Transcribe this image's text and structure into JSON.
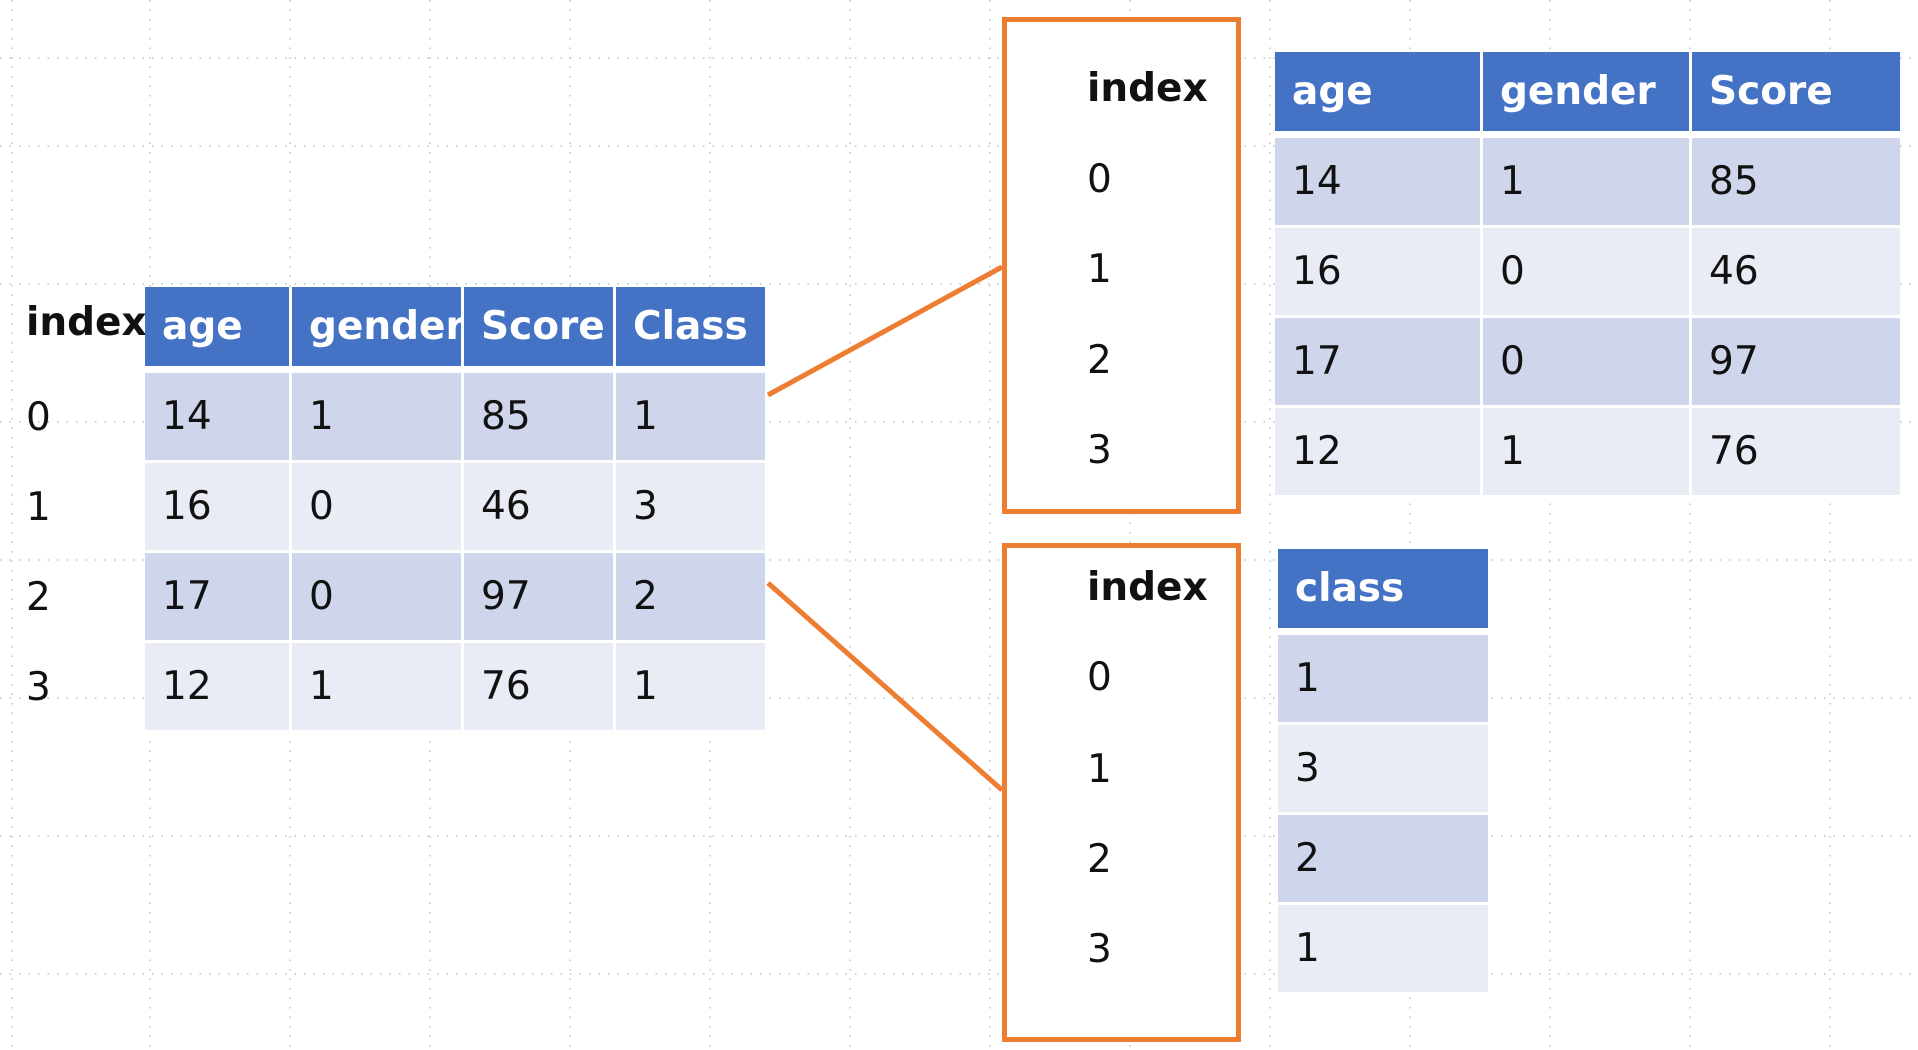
{
  "colors": {
    "header_fill": "#4472c4",
    "row_odd_fill": "#cfd5ea",
    "row_even_fill": "#e9ebf5",
    "box_stroke": "#ed7d31",
    "connector_stroke": "#ed7d31",
    "grid_dots": "#bfbfbf"
  },
  "source": {
    "index_header": "index",
    "index_values": [
      "0",
      "1",
      "2",
      "3"
    ],
    "columns": [
      "age",
      "gender",
      "Score",
      "Class"
    ],
    "rows": [
      [
        "14",
        "1",
        "85",
        "1"
      ],
      [
        "16",
        "0",
        "46",
        "3"
      ],
      [
        "17",
        "0",
        "97",
        "2"
      ],
      [
        "12",
        "1",
        "76",
        "1"
      ]
    ]
  },
  "features": {
    "index_header": "index",
    "index_values": [
      "0",
      "1",
      "2",
      "3"
    ],
    "columns": [
      "age",
      "gender",
      "Score"
    ],
    "rows": [
      [
        "14",
        "1",
        "85"
      ],
      [
        "16",
        "0",
        "46"
      ],
      [
        "17",
        "0",
        "97"
      ],
      [
        "12",
        "1",
        "76"
      ]
    ]
  },
  "target": {
    "index_header": "index",
    "index_values": [
      "0",
      "1",
      "2",
      "3"
    ],
    "columns": [
      "class"
    ],
    "rows": [
      [
        "1"
      ],
      [
        "3"
      ],
      [
        "2"
      ],
      [
        "1"
      ]
    ]
  }
}
